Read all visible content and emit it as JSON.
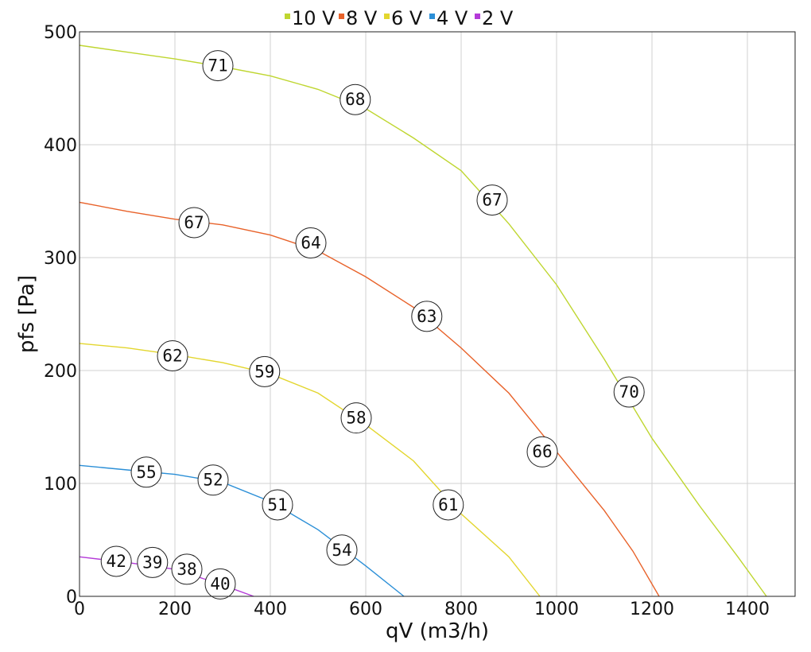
{
  "chart_data": {
    "type": "line",
    "xlabel": "qV (m3/h)",
    "ylabel": "pfs [Pa]",
    "xlim": [
      0,
      1500
    ],
    "ylim": [
      0,
      500
    ],
    "x_ticks": [
      "0",
      "200",
      "400",
      "600",
      "800",
      "1000",
      "1200",
      "1400"
    ],
    "y_ticks": [
      "0",
      "100",
      "200",
      "300",
      "400",
      "500"
    ],
    "grid": true,
    "legend_position": "top",
    "series": [
      {
        "name": "10 V",
        "color": "#bfd630",
        "points": [
          [
            0,
            488
          ],
          [
            100,
            482
          ],
          [
            200,
            476
          ],
          [
            300,
            469
          ],
          [
            400,
            461
          ],
          [
            500,
            449
          ],
          [
            600,
            432
          ],
          [
            700,
            406
          ],
          [
            800,
            377
          ],
          [
            900,
            330
          ],
          [
            1000,
            276
          ],
          [
            1100,
            210
          ],
          [
            1200,
            140
          ],
          [
            1300,
            80
          ],
          [
            1380,
            35
          ],
          [
            1440,
            0
          ]
        ],
        "labels": [
          {
            "x": 290,
            "y": 470,
            "text": "71"
          },
          {
            "x": 578,
            "y": 440,
            "text": "68"
          },
          {
            "x": 865,
            "y": 351,
            "text": "67"
          },
          {
            "x": 1152,
            "y": 181,
            "text": "70"
          }
        ]
      },
      {
        "name": "8 V",
        "color": "#e8622a",
        "points": [
          [
            0,
            349
          ],
          [
            100,
            341
          ],
          [
            200,
            334
          ],
          [
            300,
            329
          ],
          [
            400,
            320
          ],
          [
            500,
            306
          ],
          [
            600,
            283
          ],
          [
            700,
            256
          ],
          [
            800,
            220
          ],
          [
            900,
            180
          ],
          [
            1000,
            128
          ],
          [
            1100,
            76
          ],
          [
            1160,
            40
          ],
          [
            1215,
            0
          ]
        ],
        "labels": [
          {
            "x": 240,
            "y": 331,
            "text": "67"
          },
          {
            "x": 485,
            "y": 313,
            "text": "64"
          },
          {
            "x": 728,
            "y": 248,
            "text": "63"
          },
          {
            "x": 970,
            "y": 128,
            "text": "66"
          }
        ]
      },
      {
        "name": "6 V",
        "color": "#e3d62e",
        "points": [
          [
            0,
            224
          ],
          [
            100,
            220
          ],
          [
            200,
            214
          ],
          [
            300,
            207
          ],
          [
            400,
            197
          ],
          [
            500,
            180
          ],
          [
            600,
            152
          ],
          [
            700,
            120
          ],
          [
            800,
            73
          ],
          [
            900,
            35
          ],
          [
            965,
            0
          ]
        ],
        "labels": [
          {
            "x": 195,
            "y": 213,
            "text": "62"
          },
          {
            "x": 388,
            "y": 199,
            "text": "59"
          },
          {
            "x": 580,
            "y": 158,
            "text": "58"
          },
          {
            "x": 773,
            "y": 81,
            "text": "61"
          }
        ]
      },
      {
        "name": "4 V",
        "color": "#2b8fd7",
        "points": [
          [
            0,
            116
          ],
          [
            100,
            112
          ],
          [
            200,
            108
          ],
          [
            300,
            101
          ],
          [
            400,
            84
          ],
          [
            500,
            59
          ],
          [
            600,
            27
          ],
          [
            680,
            0
          ]
        ],
        "labels": [
          {
            "x": 140,
            "y": 110,
            "text": "55"
          },
          {
            "x": 280,
            "y": 103,
            "text": "52"
          },
          {
            "x": 415,
            "y": 81,
            "text": "51"
          },
          {
            "x": 550,
            "y": 41,
            "text": "54"
          }
        ]
      },
      {
        "name": "2 V",
        "color": "#b43ad8",
        "points": [
          [
            0,
            35
          ],
          [
            100,
            30
          ],
          [
            200,
            24
          ],
          [
            300,
            10
          ],
          [
            365,
            0
          ]
        ],
        "labels": [
          {
            "x": 77,
            "y": 31,
            "text": "42"
          },
          {
            "x": 153,
            "y": 30,
            "text": "39"
          },
          {
            "x": 225,
            "y": 24,
            "text": "38"
          },
          {
            "x": 295,
            "y": 11,
            "text": "40"
          }
        ]
      }
    ]
  }
}
